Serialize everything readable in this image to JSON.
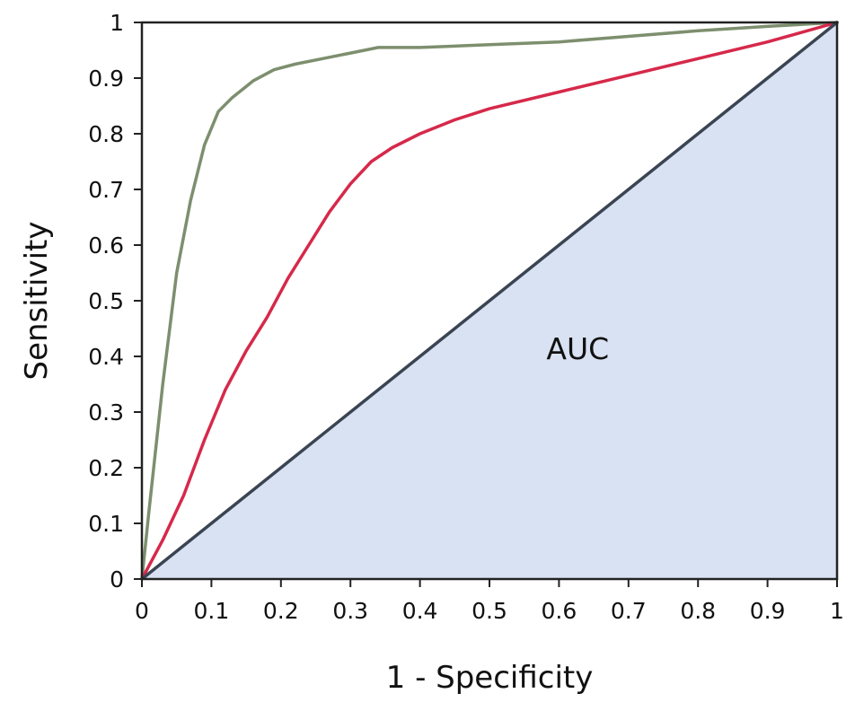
{
  "chart_data": {
    "type": "line",
    "title": "",
    "xlabel": "1 - Specificity",
    "ylabel": "Sensitivity",
    "xlim": [
      0,
      1
    ],
    "ylim": [
      0,
      1
    ],
    "x_ticks": [
      "0",
      "0.1",
      "0.2",
      "0.3",
      "0.4",
      "0.5",
      "0.6",
      "0.7",
      "0.8",
      "0.9",
      "1"
    ],
    "y_ticks": [
      "0",
      "0.1",
      "0.2",
      "0.3",
      "0.4",
      "0.5",
      "0.6",
      "0.7",
      "0.8",
      "0.9",
      "1"
    ],
    "grid": false,
    "legend": "none",
    "annotation": "AUC",
    "shaded_region": {
      "description_color": "#d9e2f2",
      "below_series_index": 2
    },
    "series": [
      {
        "color": "#7d8f6e",
        "points": [
          [
            0,
            0
          ],
          [
            0.01,
            0.12
          ],
          [
            0.03,
            0.35
          ],
          [
            0.05,
            0.55
          ],
          [
            0.07,
            0.68
          ],
          [
            0.09,
            0.78
          ],
          [
            0.11,
            0.84
          ],
          [
            0.13,
            0.865
          ],
          [
            0.16,
            0.895
          ],
          [
            0.19,
            0.915
          ],
          [
            0.22,
            0.925
          ],
          [
            0.26,
            0.935
          ],
          [
            0.3,
            0.945
          ],
          [
            0.34,
            0.955
          ],
          [
            0.4,
            0.955
          ],
          [
            0.5,
            0.96
          ],
          [
            0.6,
            0.965
          ],
          [
            0.7,
            0.975
          ],
          [
            0.8,
            0.985
          ],
          [
            0.9,
            0.993
          ],
          [
            1,
            1
          ]
        ]
      },
      {
        "color": "#d6294a",
        "points": [
          [
            0,
            0
          ],
          [
            0.03,
            0.07
          ],
          [
            0.06,
            0.15
          ],
          [
            0.09,
            0.25
          ],
          [
            0.12,
            0.34
          ],
          [
            0.15,
            0.41
          ],
          [
            0.18,
            0.47
          ],
          [
            0.21,
            0.54
          ],
          [
            0.24,
            0.6
          ],
          [
            0.27,
            0.66
          ],
          [
            0.3,
            0.71
          ],
          [
            0.33,
            0.75
          ],
          [
            0.36,
            0.775
          ],
          [
            0.4,
            0.8
          ],
          [
            0.45,
            0.825
          ],
          [
            0.5,
            0.845
          ],
          [
            0.6,
            0.875
          ],
          [
            0.7,
            0.905
          ],
          [
            0.8,
            0.935
          ],
          [
            0.9,
            0.965
          ],
          [
            1,
            1
          ]
        ]
      },
      {
        "color": "#3a4452",
        "points": [
          [
            0,
            0
          ],
          [
            1,
            1
          ]
        ]
      }
    ]
  }
}
